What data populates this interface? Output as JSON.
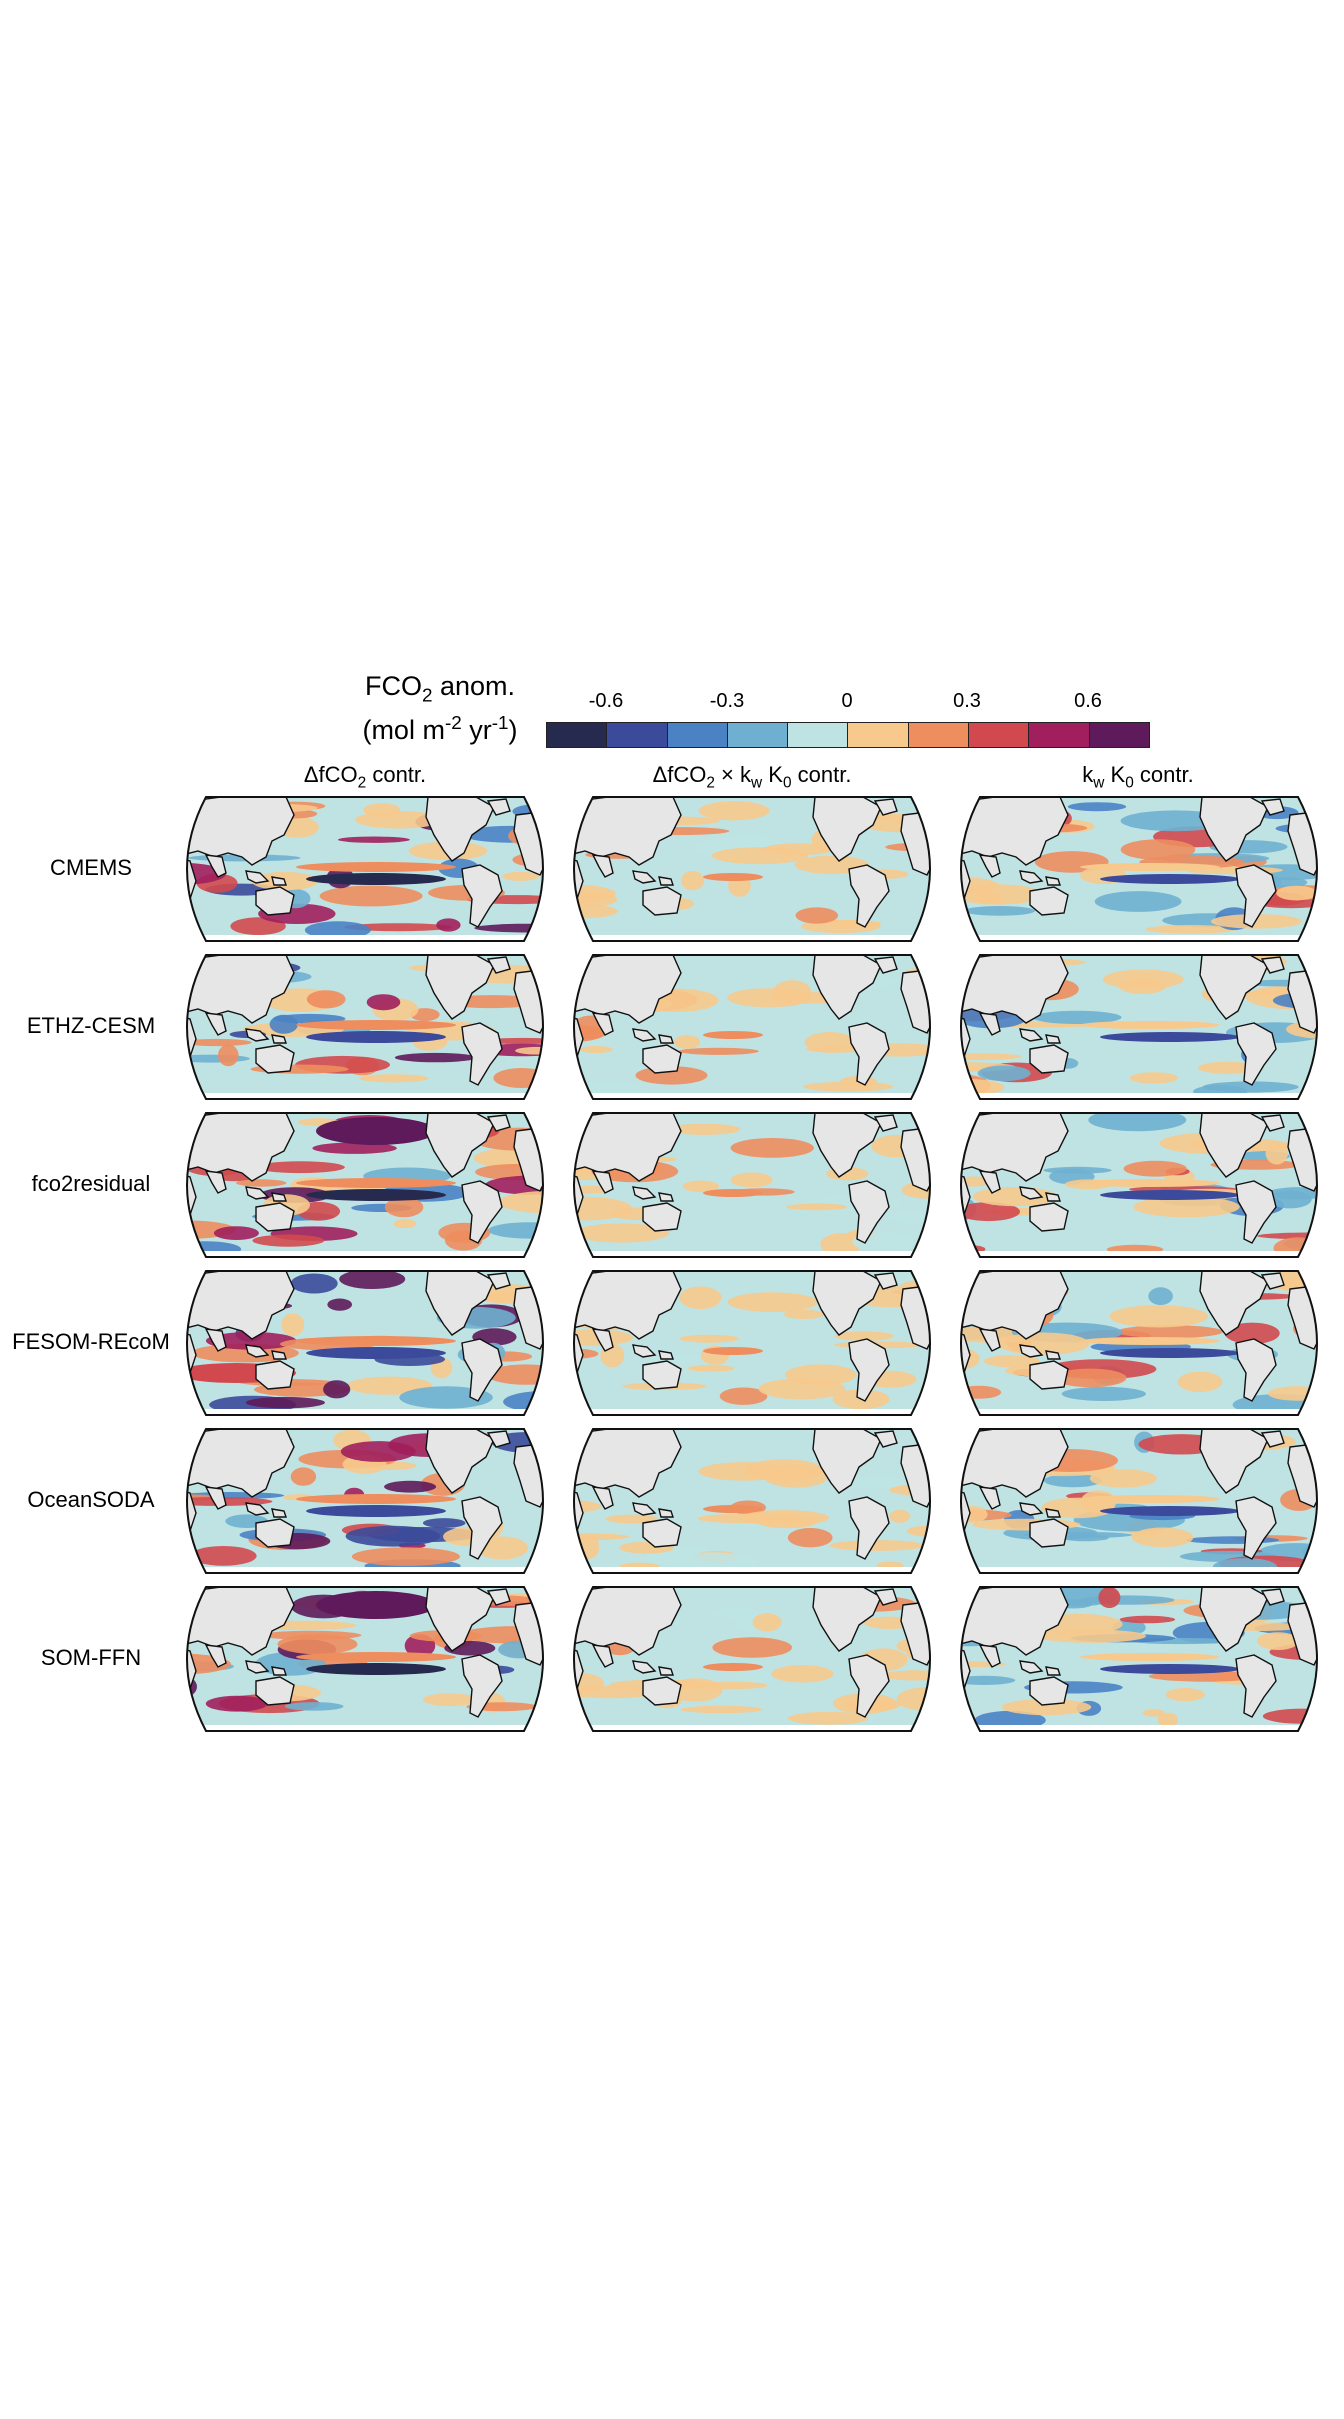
{
  "legend": {
    "title_main": "FCO",
    "title_sub": "2",
    "title_tail": " anom.",
    "units_a": "(mol m",
    "units_exp1": "-2",
    "units_b": " yr",
    "units_exp2": "-1",
    "units_c": ")",
    "ticks": [
      "-0.6",
      "-0.3",
      "0",
      "0.3",
      "0.6"
    ],
    "colors": [
      "#262a4e",
      "#3b4a9a",
      "#4a82c4",
      "#6fb0d0",
      "#bfe3e3",
      "#f7c98c",
      "#ee8d5e",
      "#d1494e",
      "#a01f5c",
      "#5e1a5a"
    ]
  },
  "columns": [
    {
      "pre": "ΔfCO",
      "sub": "2",
      "post": " contr."
    },
    {
      "pre": "ΔfCO",
      "sub": "2",
      "mid": " × k",
      "sub2": "w",
      "mid2": " K",
      "sub3": "0",
      "post": " contr."
    },
    {
      "pre": "k",
      "sub": "w",
      "mid": " K",
      "sub2": "0",
      "post": " contr."
    }
  ],
  "rows": [
    "CMEMS",
    "ETHZ-CESM",
    "fco2residual",
    "FESOM-REcoM",
    "OceanSODA",
    "SOM-FFN"
  ],
  "chart_data": {
    "type": "heatmap",
    "title": "",
    "colorbar_label": "FCO2 anom. (mol m-2 yr-1)",
    "colorbar_ticks": [
      -0.6,
      -0.3,
      0,
      0.3,
      0.6
    ],
    "colorbar_range": [
      -0.75,
      0.75
    ],
    "panels_grid": {
      "rows": 6,
      "cols": 3
    }
  }
}
